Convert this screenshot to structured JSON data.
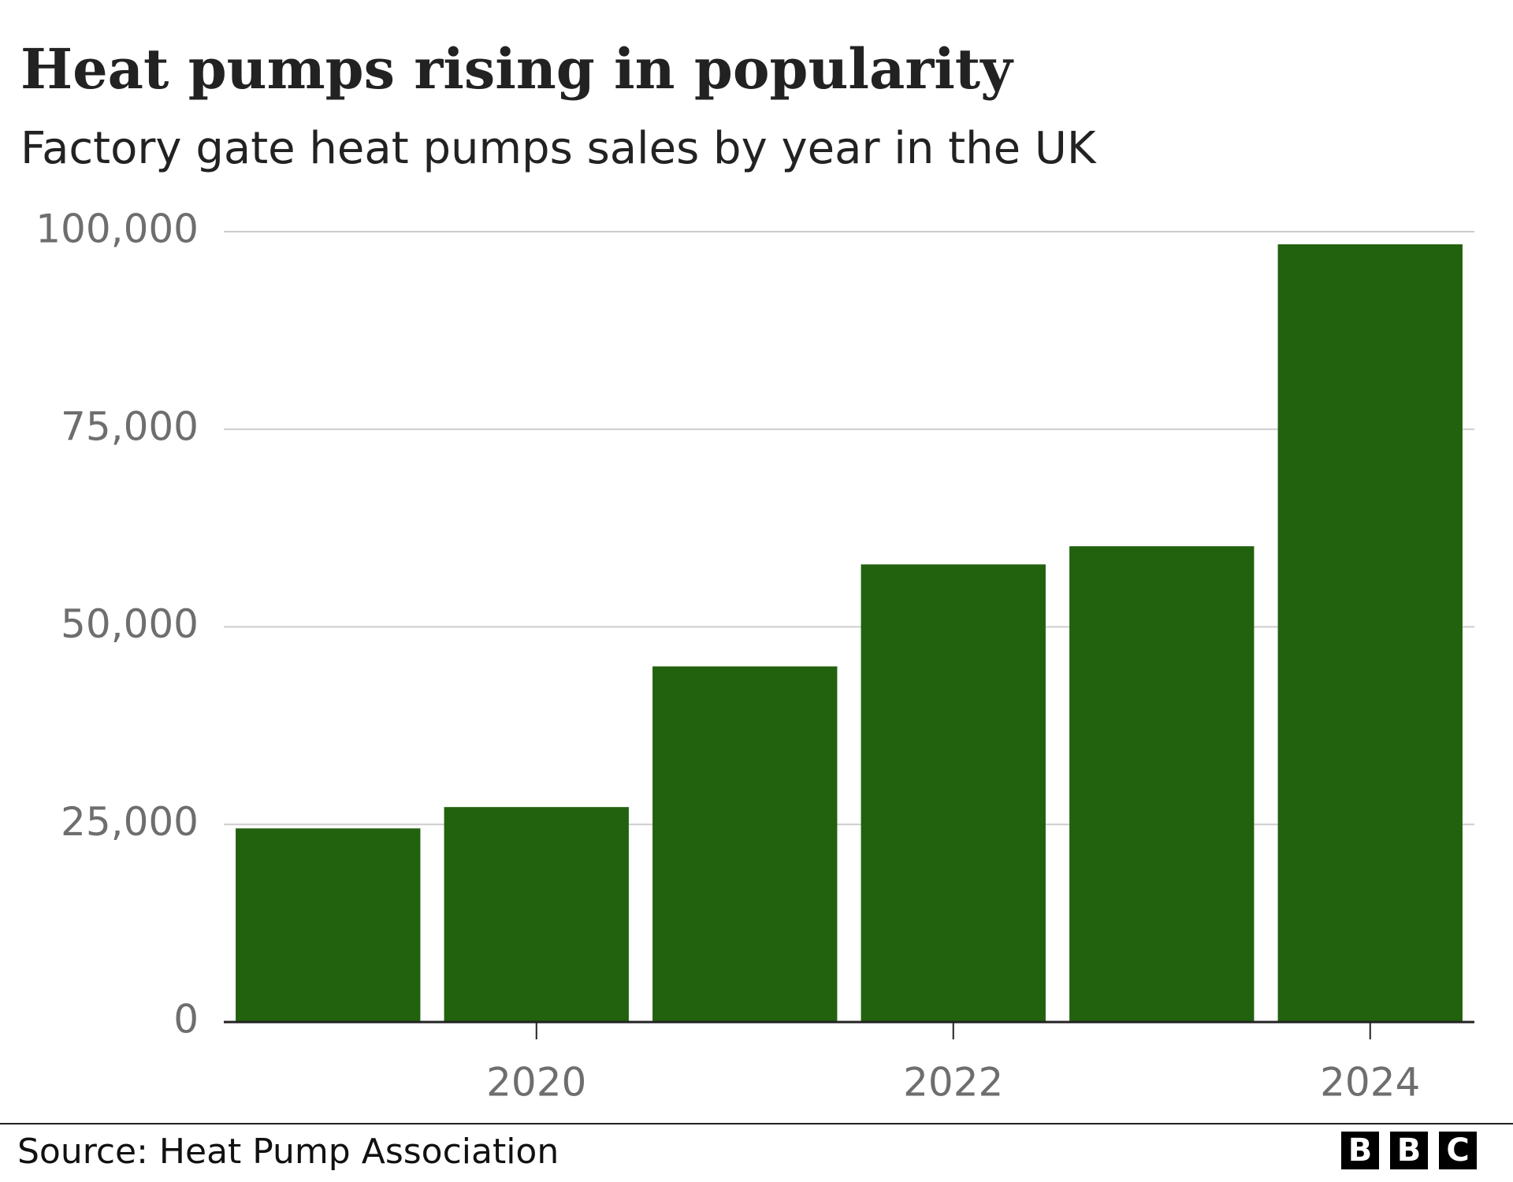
{
  "chart_data": {
    "type": "bar",
    "title": "Heat pumps rising in popularity",
    "subtitle": "Factory gate heat pumps sales by year in the UK",
    "categories": [
      null,
      "2020",
      null,
      "2022",
      null,
      "2024"
    ],
    "values": [
      24500,
      27200,
      45000,
      57900,
      60200,
      98400
    ],
    "color": "#22610d",
    "ylim": [
      0,
      100000
    ],
    "yticks": [
      0,
      {
        "value": 25000,
        "label": "25,000"
      },
      {
        "value": 50000,
        "label": "50,000"
      },
      {
        "value": 75000,
        "label": "75,000"
      },
      {
        "value": 100000,
        "label": "100,000"
      }
    ],
    "grid": true,
    "source": "Source: Heat Pump Association",
    "logo": [
      "B",
      "B",
      "C"
    ]
  }
}
